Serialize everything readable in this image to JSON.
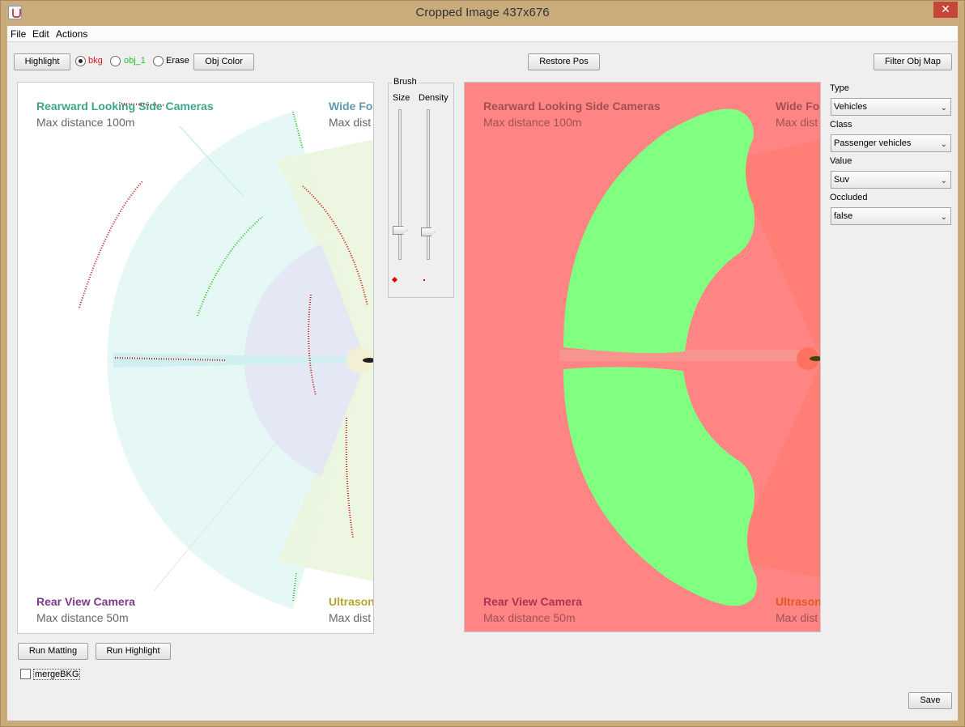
{
  "window": {
    "title": "Cropped Image  437x676",
    "close_glyph": "✕"
  },
  "menu": [
    "File",
    "Edit",
    "Actions"
  ],
  "toolbar": {
    "highlight": "Highlight",
    "radios": [
      {
        "label": "bkg",
        "color": "#d11a1a",
        "checked": true
      },
      {
        "label": "obj_1",
        "color": "#22c322",
        "checked": false
      },
      {
        "label": "Erase",
        "color": "#000000",
        "checked": false
      }
    ],
    "obj_color": "Obj Color",
    "restore_pos": "Restore Pos",
    "filter_obj_map": "Filter Obj Map"
  },
  "brush": {
    "title": "Brush",
    "size_label": "Size",
    "density_label": "Density"
  },
  "image": {
    "labels": {
      "side_title": "Rearward Looking Side Cameras",
      "side_dist": "Max distance 100m",
      "wide_title": "Wide Fo",
      "wide_dist": "Max dist",
      "rear_title": "Rear View Camera",
      "rear_dist": "Max distance 50m",
      "ultra_title": "Ultrason",
      "ultra_dist": "Max dist"
    },
    "colors": {
      "side_title": "#3fa48a",
      "wide_title": "#5e9ab0",
      "rear_title": "#7b3a8a",
      "ultra_title": "#b7a42a",
      "bkg": "#ff8080",
      "obj": "#80ff80"
    }
  },
  "properties": [
    {
      "label": "Type",
      "value": "Vehicles"
    },
    {
      "label": "Class",
      "value": "Passenger vehicles"
    },
    {
      "label": "Value",
      "value": "Suv"
    },
    {
      "label": "Occluded",
      "value": "false"
    }
  ],
  "bottom": {
    "run_matting": "Run Matting",
    "run_highlight": "Run Highlight",
    "merge_bkg": "mergeBKG",
    "save": "Save"
  }
}
